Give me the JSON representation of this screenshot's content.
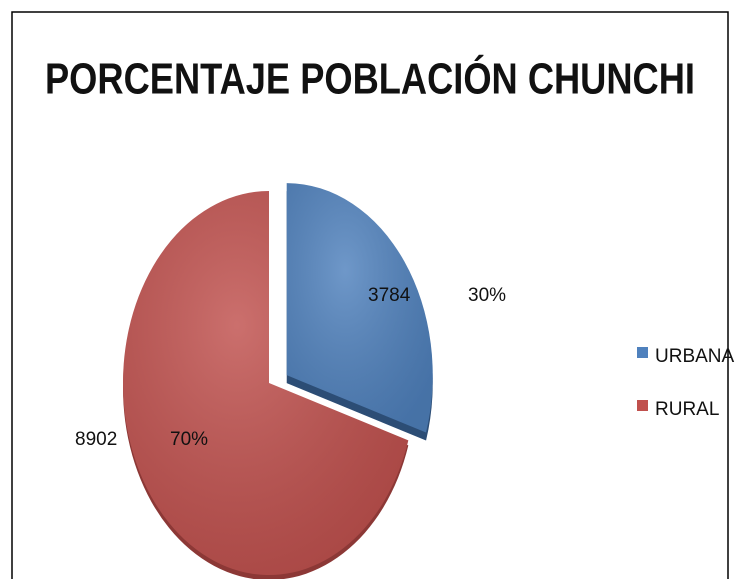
{
  "chart_data": {
    "type": "pie",
    "title": "PORCENTAJE POBLACIÓN CHUNCHI",
    "categories": [
      "URBANA",
      "RURAL"
    ],
    "values": [
      3784,
      8902
    ],
    "percentages": [
      30,
      70
    ],
    "percentage_labels": [
      "30%",
      "70%"
    ],
    "colors": [
      "#4f81bd",
      "#c0504d"
    ],
    "exploded": [
      true,
      false
    ],
    "legend": "right"
  }
}
